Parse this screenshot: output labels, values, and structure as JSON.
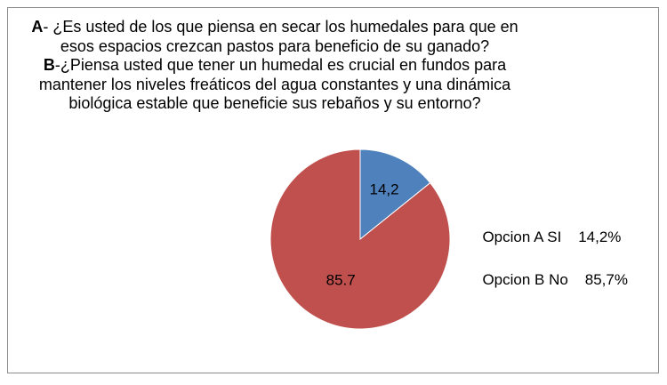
{
  "title": {
    "a_prefix": "A",
    "a_text": "- ¿Es usted de los que piensa en secar los humedales para que en esos espacios crezcan  pastos para beneficio de su ganado?",
    "b_prefix": "B",
    "b_text": "-¿Piensa usted que tener un humedal es crucial en fundos para mantener  los niveles  freáticos del agua constantes  y una dinámica biológica estable que beneficie sus rebaños y su entorno?"
  },
  "legend": [
    {
      "label": "Opcion A SI",
      "value": "14,2%"
    },
    {
      "label": "Opcion B No",
      "value": "85,7%"
    }
  ],
  "colors": {
    "slice_a": "#4f81bd",
    "slice_b": "#c0504d",
    "border": "#8c8c8c"
  },
  "chart_data": {
    "type": "pie",
    "categories": [
      "Opcion A SI",
      "Opcion B No"
    ],
    "values": [
      14.2,
      85.7
    ],
    "data_labels": [
      "14,2",
      "85.7"
    ],
    "colors": [
      "#4f81bd",
      "#c0504d"
    ]
  }
}
